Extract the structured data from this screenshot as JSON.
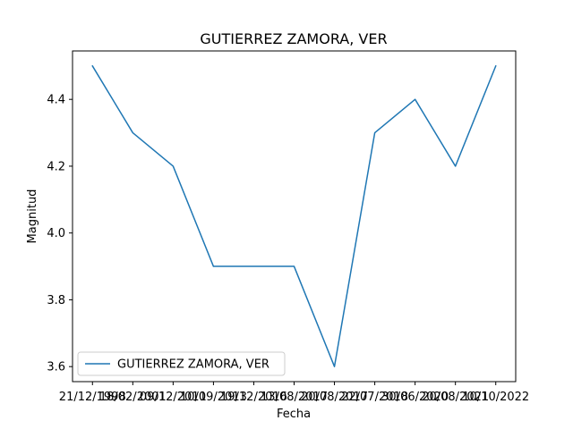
{
  "chart_data": {
    "type": "line",
    "title": "GUTIERREZ ZAMORA, VER",
    "xlabel": "Fecha",
    "ylabel": "Magnitud",
    "categories": [
      "21/12/1998",
      "18/02/2001",
      "09/12/2011",
      "10/09/2013",
      "19/12/2016",
      "13/08/2017",
      "20/08/2017",
      "22/07/2018",
      "30/06/2020",
      "20/08/2021",
      "10/10/2022"
    ],
    "series": [
      {
        "name": "GUTIERREZ ZAMORA, VER",
        "color": "#1f77b4",
        "values": [
          4.5,
          4.3,
          4.2,
          3.9,
          3.9,
          3.9,
          3.6,
          4.3,
          4.4,
          4.2,
          4.5
        ]
      }
    ],
    "yticks": [
      3.6,
      3.8,
      4.0,
      4.2,
      4.4
    ],
    "ylim": [
      3.555,
      4.545
    ],
    "grid": false,
    "legend": "lower-left"
  }
}
